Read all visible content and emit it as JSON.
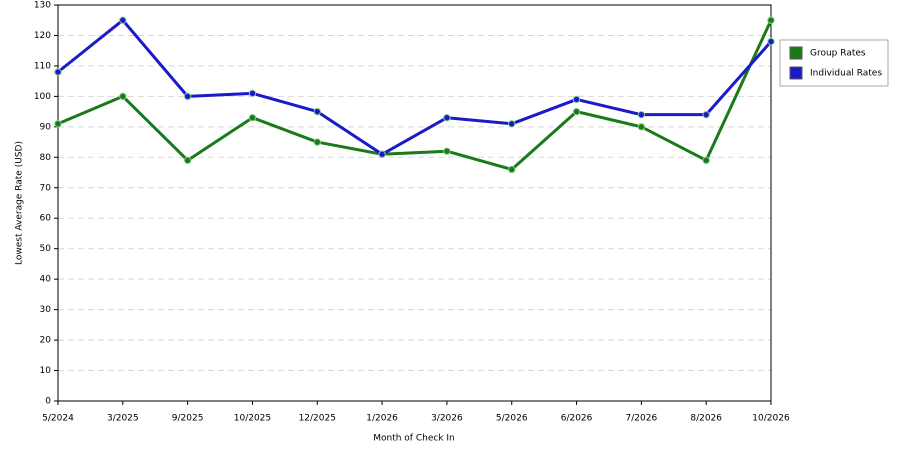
{
  "chart_data": {
    "type": "line",
    "x_label": "Month of Check In",
    "y_label": "Lowest Average Rate (USD)",
    "categories": [
      "5/2024",
      "3/2025",
      "9/2025",
      "10/2025",
      "12/2025",
      "1/2026",
      "3/2026",
      "5/2026",
      "6/2026",
      "7/2026",
      "8/2026",
      "10/2026"
    ],
    "series": [
      {
        "name": "Group Rates",
        "color": "#1a7a1a",
        "values": [
          91,
          100,
          79,
          93,
          85,
          81,
          82,
          76,
          95,
          90,
          79,
          125
        ]
      },
      {
        "name": "Individual Rates",
        "color": "#1a1acc",
        "values": [
          108,
          125,
          100,
          101,
          95,
          81,
          93,
          91,
          99,
          94,
          94,
          118
        ]
      }
    ],
    "ylim": [
      0,
      130
    ],
    "yticks": [
      0,
      10,
      20,
      30,
      40,
      50,
      60,
      70,
      80,
      90,
      100,
      110,
      120,
      130
    ],
    "grid": true,
    "legend": "right"
  }
}
